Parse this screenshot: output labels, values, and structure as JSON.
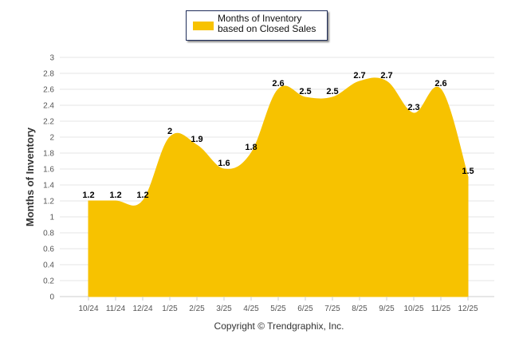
{
  "chart_data": {
    "type": "area",
    "title": "",
    "legend": {
      "label": "Months of Inventory based on Closed Sales",
      "placement": "top-center"
    },
    "categories": [
      "10/24",
      "11/24",
      "12/24",
      "1/25",
      "2/25",
      "3/25",
      "4/25",
      "5/25",
      "6/25",
      "7/25",
      "8/25",
      "9/25",
      "10/25",
      "11/25",
      "12/25"
    ],
    "values": [
      1.2,
      1.2,
      1.2,
      2,
      1.9,
      1.6,
      1.8,
      2.6,
      2.5,
      2.5,
      2.7,
      2.7,
      2.3,
      2.6,
      1.5
    ],
    "ylabel": "Months of Inventory",
    "xlabel": "",
    "ylim": [
      0,
      3
    ],
    "yticks": [
      "0",
      "0.2",
      "0.4",
      "0.6",
      "0.8",
      "1",
      "1.2",
      "1.4",
      "1.6",
      "1.8",
      "2",
      "2.2",
      "2.4",
      "2.6",
      "2.8",
      "3"
    ],
    "grid": true,
    "color": "#F7C200",
    "footer": "Copyright © Trendgraphix, Inc."
  }
}
